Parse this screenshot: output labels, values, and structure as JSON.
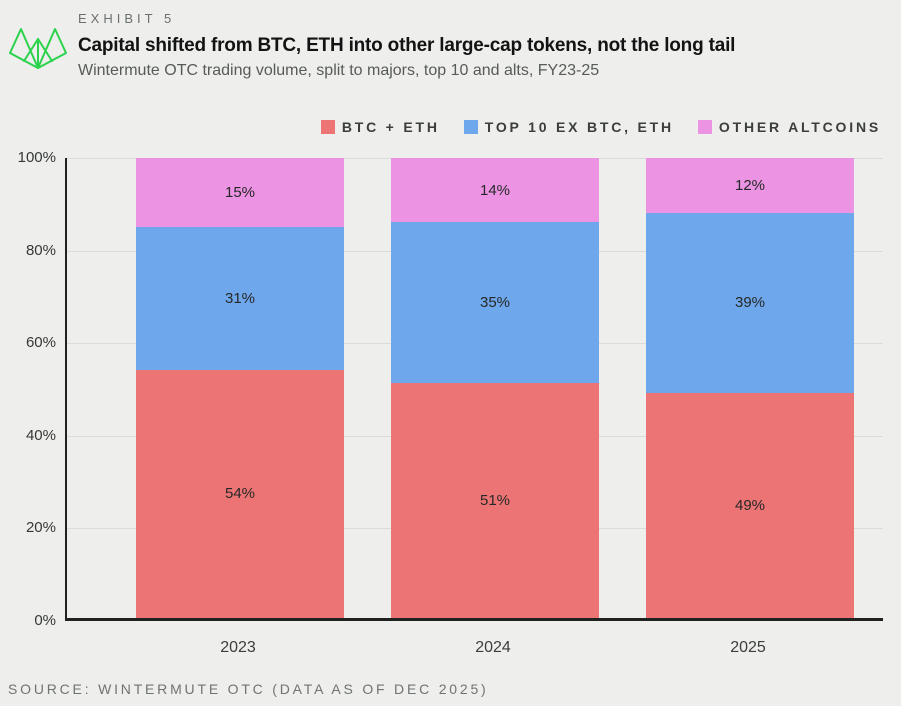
{
  "header": {
    "exhibit_label": "EXHIBIT 5",
    "title": "Capital shifted from BTC, ETH into other large-cap tokens, not the long tail",
    "subtitle": "Wintermute OTC trading volume, split to majors, top 10 and alts, FY23-25",
    "logo_color": "#2BD24B"
  },
  "chart_data": {
    "type": "bar",
    "stacked": true,
    "title": "Capital shifted from BTC, ETH into other large-cap tokens, not the long tail",
    "subtitle": "Wintermute OTC trading volume, split to majors, top 10 and alts, FY23-25",
    "categories": [
      "2023",
      "2024",
      "2025"
    ],
    "series": [
      {
        "name": "BTC + ETH",
        "color": "#ED7474",
        "values": [
          54,
          51,
          49
        ]
      },
      {
        "name": "TOP 10 EX BTC, ETH",
        "color": "#6EA7EB",
        "values": [
          31,
          35,
          39
        ]
      },
      {
        "name": "OTHER ALTCOINS",
        "color": "#EC93E3",
        "values": [
          15,
          14,
          12
        ]
      }
    ],
    "value_suffix": "%",
    "xlabel": "",
    "ylabel": "",
    "ylim": [
      0,
      100
    ],
    "yticks": [
      0,
      20,
      40,
      60,
      80,
      100
    ],
    "ytick_suffix": "%",
    "grid": true,
    "legend_position": "top-right",
    "colors": {
      "background": "#EEEEEC",
      "gridline": "#DBDBD9",
      "axis": "#1F221F",
      "bar_label": "#262827"
    }
  },
  "footer": {
    "source": "SOURCE: WINTERMUTE OTC (DATA AS OF DEC 2025)"
  }
}
